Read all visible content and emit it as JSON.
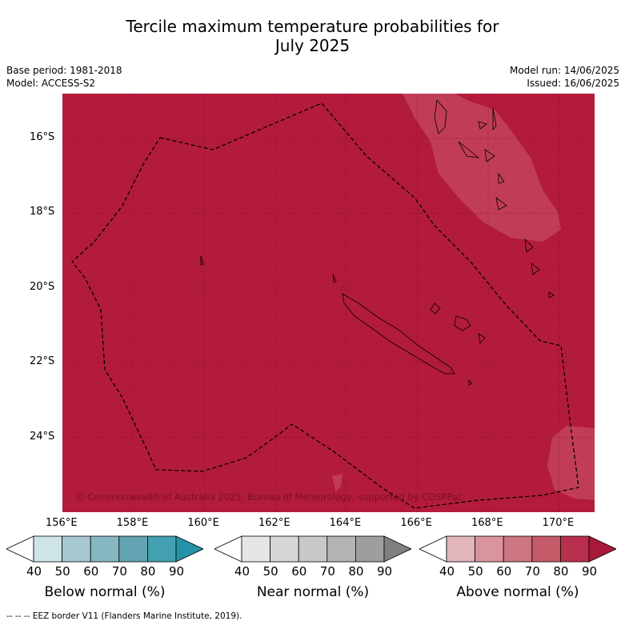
{
  "title_line1": "Tercile maximum temperature probabilities for",
  "title_line2": "July 2025",
  "base_period": "Base period: 1981-2018",
  "model": "Model: ACCESS-S2",
  "model_run": "Model run: 14/06/2025",
  "issued": "Issued: 16/06/2025",
  "copyright": "© Commonwealth of Australia 2025, Bureau of Meteorology, supported by COSPPac",
  "footer": "-- -- -- EEZ border V11 (Flanders Marine Institute, 2019).",
  "map": {
    "background_color": "#b31b3a",
    "lighter_shade_color": "#c6495f",
    "lon_range": [
      156,
      171
    ],
    "lat_range": [
      -26.0,
      -14.8
    ],
    "lon_ticks": [
      "156°E",
      "158°E",
      "160°E",
      "162°E",
      "164°E",
      "166°E",
      "168°E",
      "170°E"
    ],
    "lat_ticks": [
      "16°S",
      "18°S",
      "20°S",
      "22°S",
      "24°S"
    ]
  },
  "colorbars": [
    {
      "name": "Below normal (%)",
      "colors": [
        "#cfe4e9",
        "#a7c8cf",
        "#86b6c1",
        "#64a4b2",
        "#43a0b1",
        "#2592a8"
      ],
      "ticks": [
        "40",
        "50",
        "60",
        "70",
        "80",
        "90"
      ]
    },
    {
      "name": "Near normal (%)",
      "colors": [
        "#e6e6e6",
        "#d6d6d6",
        "#c8c8c8",
        "#b4b4b4",
        "#9e9e9e",
        "#808080"
      ],
      "ticks": [
        "40",
        "50",
        "60",
        "70",
        "80",
        "90"
      ]
    },
    {
      "name": "Above normal (%)",
      "colors": [
        "#e2b5bc",
        "#d9949d",
        "#cb7680",
        "#c45b69",
        "#b8304b",
        "#a7183a"
      ],
      "ticks": [
        "40",
        "50",
        "60",
        "70",
        "80",
        "90"
      ]
    }
  ]
}
